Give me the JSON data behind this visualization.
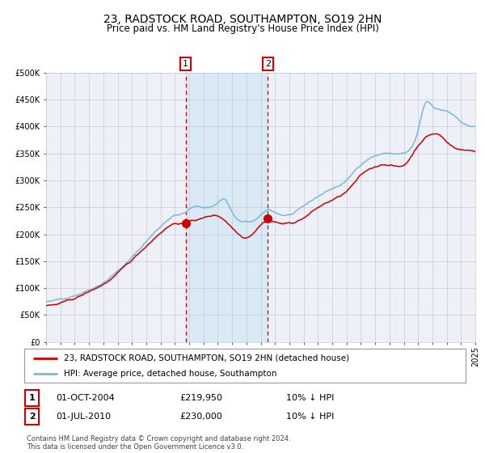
{
  "title": "23, RADSTOCK ROAD, SOUTHAMPTON, SO19 2HN",
  "subtitle": "Price paid vs. HM Land Registry's House Price Index (HPI)",
  "title_fontsize": 10,
  "subtitle_fontsize": 8.5,
  "hpi_color": "#7ab8d9",
  "price_color": "#cc0000",
  "marker_color": "#cc0000",
  "highlight_color": "#daeaf5",
  "dashed_color": "#cc0000",
  "grid_color": "#c8c8d8",
  "bg_color": "#ffffff",
  "plot_bg_color": "#eef0f8",
  "ylim": [
    0,
    500000
  ],
  "yticks": [
    0,
    50000,
    100000,
    150000,
    200000,
    250000,
    300000,
    350000,
    400000,
    450000,
    500000
  ],
  "year_start": 1995,
  "year_end": 2025,
  "sale1_date": 2004.75,
  "sale1_price": 219950,
  "sale1_label": "1",
  "sale1_note": "01-OCT-2004",
  "sale1_pct": "10% ↓ HPI",
  "sale2_date": 2010.5,
  "sale2_price": 230000,
  "sale2_label": "2",
  "sale2_note": "01-JUL-2010",
  "sale2_pct": "10% ↓ HPI",
  "legend_line1": "23, RADSTOCK ROAD, SOUTHAMPTON, SO19 2HN (detached house)",
  "legend_line2": "HPI: Average price, detached house, Southampton",
  "footer": "Contains HM Land Registry data © Crown copyright and database right 2024.\nThis data is licensed under the Open Government Licence v3.0."
}
